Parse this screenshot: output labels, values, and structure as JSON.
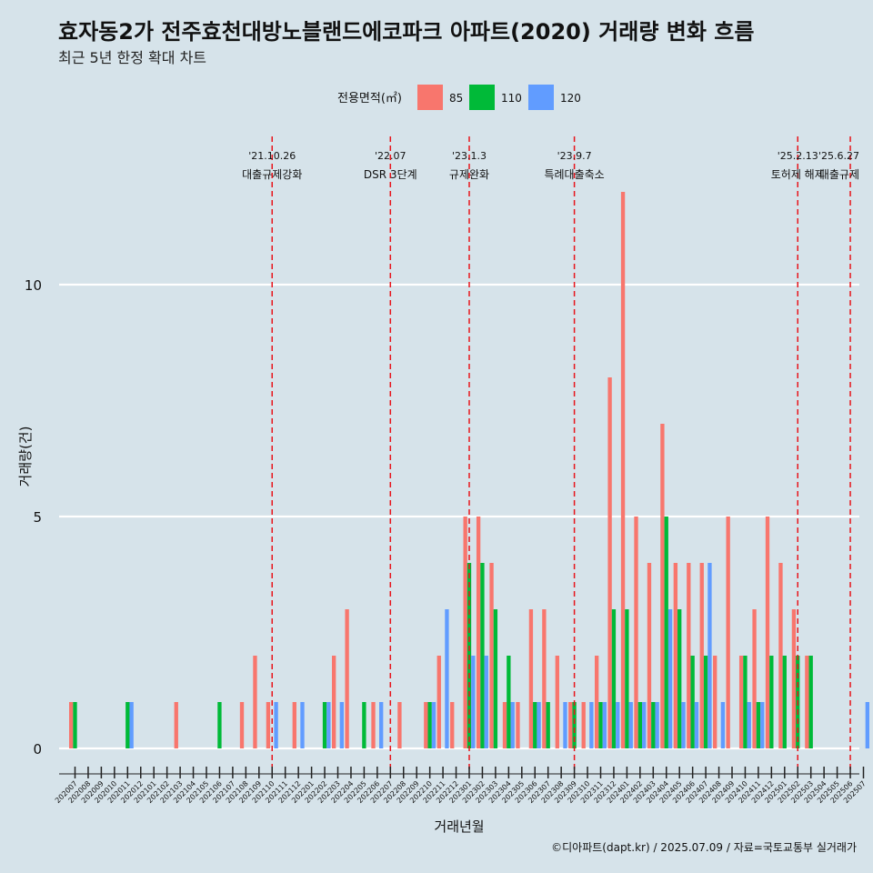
{
  "header": {
    "title": "효자동2가 전주효천대방노블랜드에코파크 아파트(2020) 거래량 변화 흐름",
    "subtitle": "최근 5년 한정 확대 차트"
  },
  "legend": {
    "title": "전용면적(㎡)",
    "entries": [
      {
        "label": "85",
        "color": "#F8766D"
      },
      {
        "label": "110",
        "color": "#00BA38"
      },
      {
        "label": "120",
        "color": "#619CFF"
      }
    ]
  },
  "caption": "©디아파트(dapt.kr) / 2025.07.09 / 자료=국토교통부 실거래가",
  "chart_data": {
    "type": "bar",
    "xlabel": "거래년월",
    "ylabel": "거래량(건)",
    "ylim": [
      0,
      12
    ],
    "yticks": [
      0,
      5,
      10
    ],
    "grid": "horizontal",
    "legend_position": "top",
    "categories": [
      "202007",
      "202008",
      "202009",
      "202010",
      "202011",
      "202012",
      "202101",
      "202102",
      "202103",
      "202104",
      "202105",
      "202106",
      "202107",
      "202108",
      "202109",
      "202110",
      "202111",
      "202112",
      "202201",
      "202202",
      "202203",
      "202204",
      "202205",
      "202206",
      "202207",
      "202208",
      "202209",
      "202210",
      "202211",
      "202212",
      "202301",
      "202302",
      "202303",
      "202304",
      "202305",
      "202306",
      "202307",
      "202308",
      "202309",
      "202310",
      "202311",
      "202312",
      "202401",
      "202402",
      "202403",
      "202404",
      "202405",
      "202406",
      "202407",
      "202408",
      "202409",
      "202410",
      "202411",
      "202412",
      "202501",
      "202502",
      "202503",
      "202504",
      "202505",
      "202506",
      "202507"
    ],
    "series": [
      {
        "name": "85",
        "color": "#F8766D",
        "values": [
          1,
          0,
          0,
          0,
          0,
          0,
          0,
          0,
          1,
          0,
          0,
          0,
          0,
          1,
          2,
          1,
          0,
          1,
          0,
          0,
          2,
          3,
          0,
          1,
          0,
          1,
          0,
          1,
          2,
          1,
          5,
          5,
          4,
          1,
          1,
          3,
          3,
          2,
          1,
          1,
          2,
          8,
          12,
          5,
          4,
          7,
          4,
          4,
          4,
          2,
          5,
          2,
          3,
          5,
          4,
          3,
          2,
          0,
          0,
          0,
          0
        ]
      },
      {
        "name": "110",
        "color": "#00BA38",
        "values": [
          1,
          0,
          0,
          0,
          1,
          0,
          0,
          0,
          0,
          0,
          0,
          1,
          0,
          0,
          0,
          0,
          0,
          0,
          0,
          1,
          0,
          0,
          1,
          0,
          0,
          0,
          0,
          1,
          0,
          0,
          4,
          4,
          3,
          2,
          0,
          1,
          1,
          0,
          1,
          0,
          1,
          3,
          3,
          1,
          1,
          5,
          3,
          2,
          2,
          0,
          0,
          2,
          1,
          2,
          2,
          2,
          2,
          0,
          0,
          0,
          0
        ]
      },
      {
        "name": "120",
        "color": "#619CFF",
        "values": [
          0,
          0,
          0,
          0,
          1,
          0,
          0,
          0,
          0,
          0,
          0,
          0,
          0,
          0,
          0,
          1,
          0,
          1,
          0,
          1,
          1,
          0,
          0,
          1,
          0,
          0,
          0,
          1,
          3,
          0,
          2,
          2,
          0,
          1,
          0,
          1,
          0,
          1,
          0,
          1,
          1,
          1,
          1,
          1,
          1,
          3,
          1,
          1,
          4,
          1,
          0,
          1,
          1,
          0,
          0,
          0,
          0,
          0,
          0,
          0,
          1
        ]
      }
    ],
    "events": [
      {
        "x": "202110",
        "date": "'21.10.26",
        "label": "대출규제강화"
      },
      {
        "x": "202207",
        "date": "'22.07",
        "label": "DSR 3단계"
      },
      {
        "x": "202301",
        "date": "'23.1.3",
        "label": "규제완화"
      },
      {
        "x": "202309",
        "date": "'23.9.7",
        "label": "특례대출축소"
      },
      {
        "x": "202502",
        "date": "'25.2.13",
        "label": "토허제 해제"
      },
      {
        "x": "202506",
        "date": "'25.6.27",
        "label": "대출규제"
      }
    ]
  }
}
